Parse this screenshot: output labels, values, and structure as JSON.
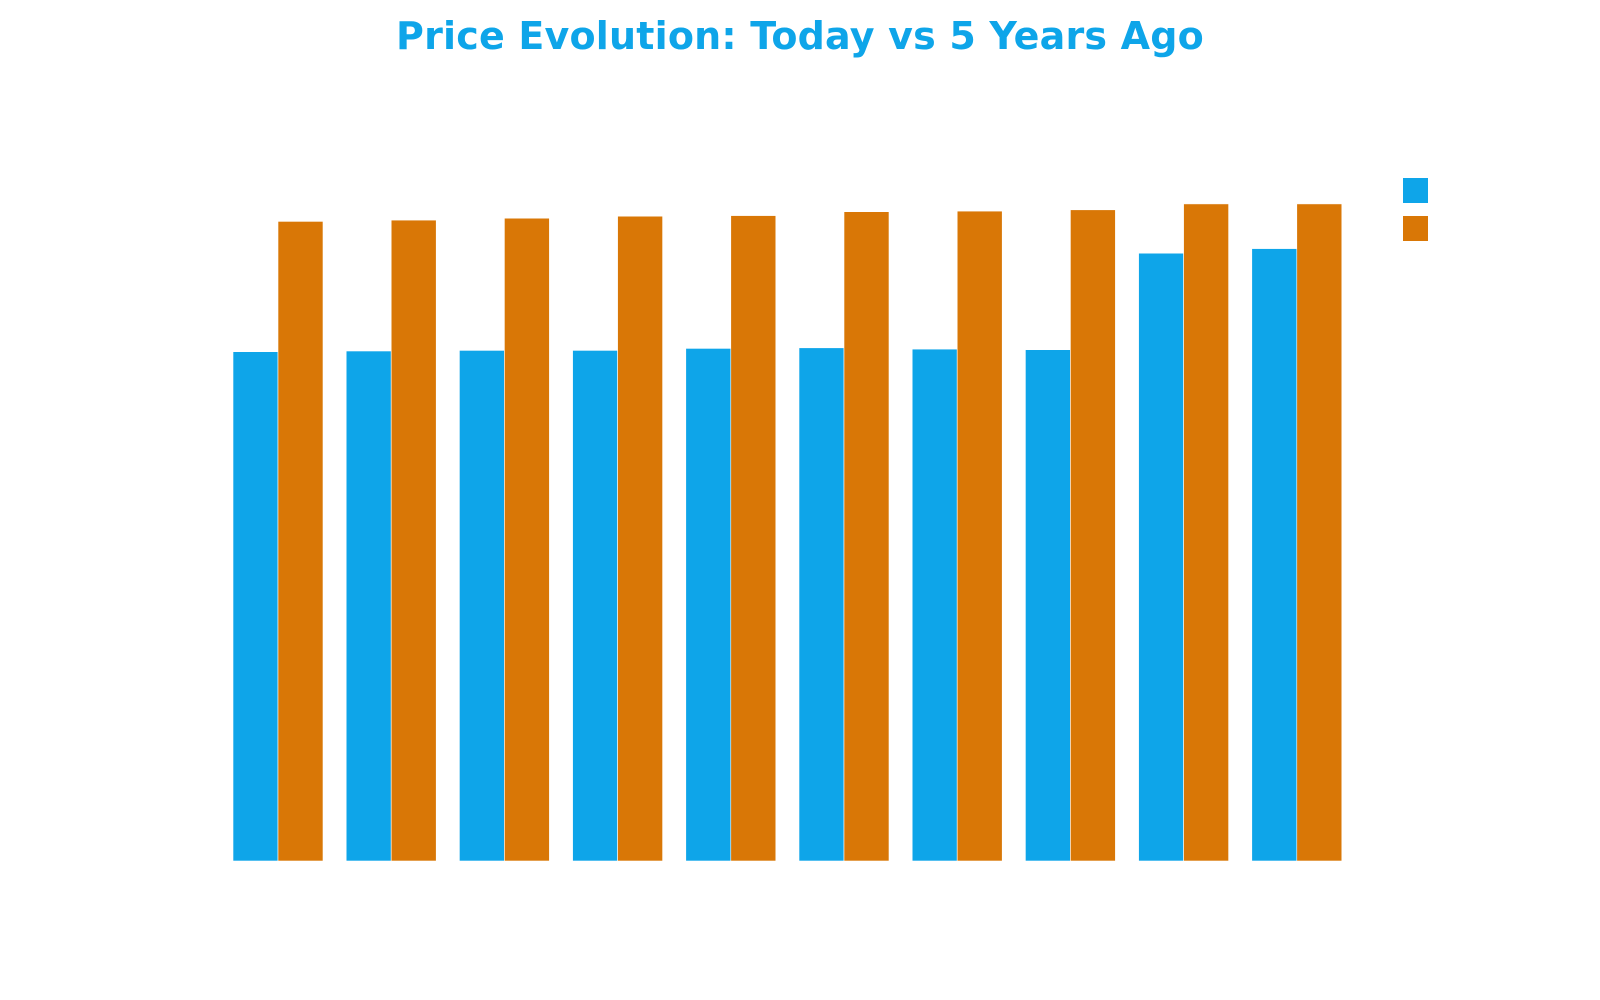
{
  "colors": {
    "title": "#0ea5e9",
    "series_blue": "#0ea5e9",
    "series_orange": "#d97706",
    "background": "#ffffff"
  },
  "chart_data": {
    "type": "bar",
    "title": "Price Evolution: Today vs 5 Years Ago",
    "xlabel": "",
    "ylabel": "",
    "ylim": [
      0,
      100
    ],
    "grid": false,
    "legend_position": "top-right",
    "categories": [
      "",
      "",
      "",
      "",
      "",
      "",
      "",
      "",
      "",
      ""
    ],
    "series": [
      {
        "color": "#0ea5e9",
        "values": [
          78.6,
          78.7,
          78.8,
          78.8,
          79.1,
          79.2,
          79.0,
          78.9,
          93.8,
          94.5
        ]
      },
      {
        "color": "#d97706",
        "values": [
          98.7,
          98.9,
          99.2,
          99.5,
          99.6,
          100.2,
          100.3,
          100.5,
          101.4,
          101.4
        ]
      }
    ]
  }
}
